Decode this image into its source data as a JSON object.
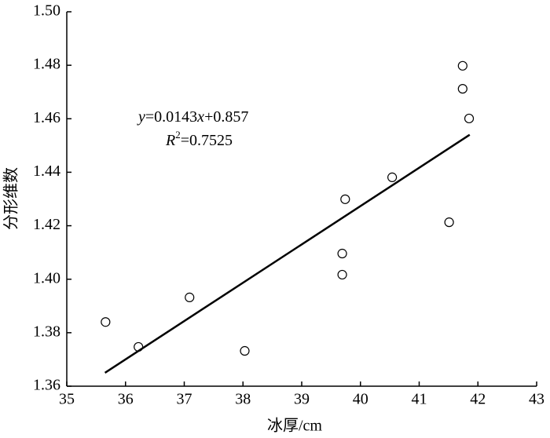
{
  "chart_data": {
    "type": "scatter",
    "x_label": "冰厚/cm",
    "y_label": "分形维数",
    "x": [
      35.66,
      36.22,
      37.09,
      38.03,
      39.69,
      39.69,
      39.74,
      40.54,
      41.51,
      41.74,
      41.74,
      41.85
    ],
    "values": [
      1.384,
      1.3747,
      1.3932,
      1.3732,
      1.4096,
      1.4017,
      1.4299,
      1.4381,
      1.4213,
      1.4798,
      1.4712,
      1.4601
    ],
    "fit_line": {
      "x": [
        35.65,
        41.86
      ],
      "values": [
        1.365,
        1.454
      ]
    },
    "equation": [
      "y",
      "=0.0143",
      "x",
      "+0.857"
    ],
    "r_squared": [
      "R",
      "2",
      "=0.7525"
    ],
    "xlim": [
      35,
      43
    ],
    "xticks": [
      35,
      36,
      37,
      38,
      39,
      40,
      41,
      42,
      43
    ],
    "ylim": [
      1.36,
      1.5
    ],
    "yticks": [
      1.36,
      1.38,
      {
        "value": 1.4,
        "label": "1.40"
      },
      1.42,
      1.44,
      1.46,
      1.48,
      {
        "value": 1.5,
        "label": "1.50"
      }
    ],
    "color": "#000000"
  }
}
